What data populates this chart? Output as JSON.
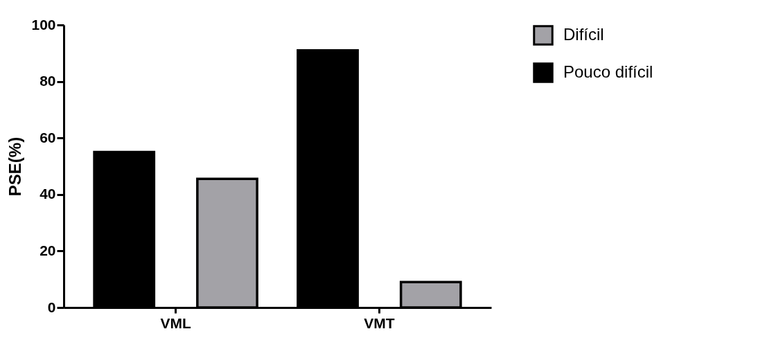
{
  "chart_data": {
    "type": "bar",
    "ylabel": "PSE(%)",
    "categories": [
      "VML",
      "VMT"
    ],
    "series": [
      {
        "name": "Difícil",
        "color": "#a3a2a7",
        "values": [
          45.5,
          9
        ]
      },
      {
        "name": "Pouco difícil",
        "color": "#000000",
        "values": [
          55,
          91
        ]
      }
    ],
    "ylim": [
      0,
      100
    ],
    "yticks": [
      0,
      20,
      40,
      60,
      80,
      100
    ],
    "grid": false,
    "legend": "top right"
  }
}
